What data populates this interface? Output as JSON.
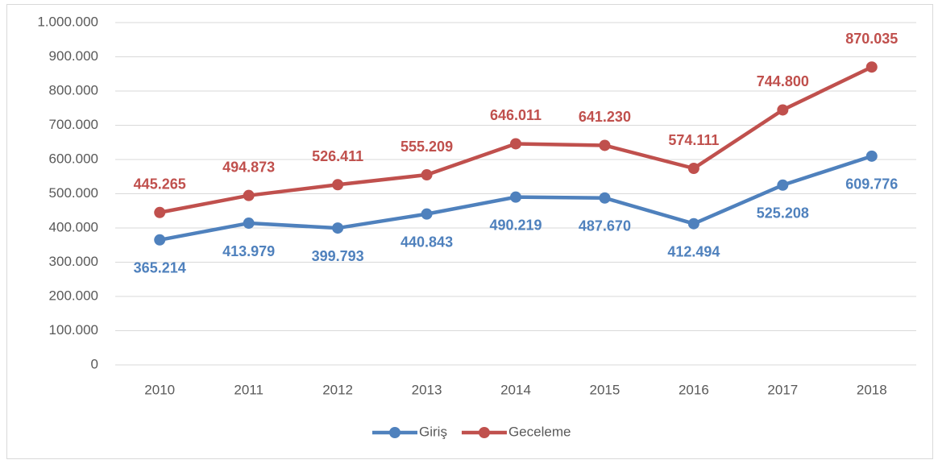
{
  "chart_data": {
    "type": "line",
    "categories": [
      "2010",
      "2011",
      "2012",
      "2013",
      "2014",
      "2015",
      "2016",
      "2017",
      "2018"
    ],
    "series": [
      {
        "name": "Giriş",
        "color": "#4f81bd",
        "values": [
          365214,
          413979,
          399793,
          440843,
          490219,
          487670,
          412494,
          525208,
          609776
        ],
        "value_labels": [
          "365.214",
          "413.979",
          "399.793",
          "440.843",
          "490.219",
          "487.670",
          "412.494",
          "525.208",
          "609.776"
        ]
      },
      {
        "name": "Geceleme",
        "color": "#c0504d",
        "values": [
          445265,
          494873,
          526411,
          555209,
          646011,
          641230,
          574111,
          744800,
          870035
        ],
        "value_labels": [
          "445.265",
          "494.873",
          "526.411",
          "555.209",
          "646.011",
          "641.230",
          "574.111",
          "744.800",
          "870.035"
        ]
      }
    ],
    "ylim": [
      0,
      1000000
    ],
    "yticks": [
      0,
      {
        "value": 100000,
        "label": "100.000"
      },
      {
        "value": 200000,
        "label": "200.000"
      },
      {
        "value": 300000,
        "label": "300.000"
      },
      {
        "value": 400000,
        "label": "400.000"
      },
      {
        "value": 500000,
        "label": "500.000"
      },
      {
        "value": 600000,
        "label": "600.000"
      },
      {
        "value": 700000,
        "label": "700.000"
      },
      {
        "value": 800000,
        "label": "800.000"
      },
      {
        "value": 900000,
        "label": "900.000"
      },
      {
        "value": 1000000,
        "label": "1.000.000"
      }
    ],
    "grid": true,
    "legend": "bottom"
  }
}
